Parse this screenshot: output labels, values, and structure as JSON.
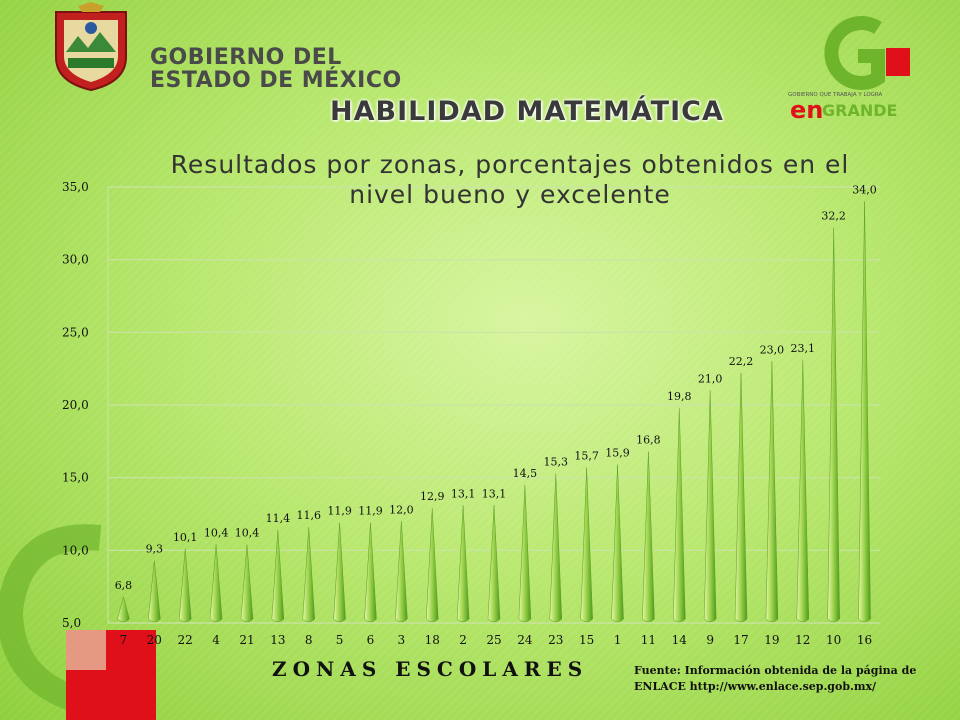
{
  "header": {
    "gov_line1": "GOBIERNO DEL",
    "gov_line2": "ESTADO DE MÉXICO",
    "right_logo_small": "GOBIERNO QUE TRABAJA Y LOGRA",
    "right_logo_en": "en",
    "right_logo_grande": "GRANDE"
  },
  "slide_title": "HABILIDAD MATEMÁTICA",
  "source_note": "Fuente: Información obtenida de la página de ENLACE http://www.enlace.sep.gob.mx/",
  "colors": {
    "accent_red": "#e0101a",
    "accent_green": "#6fb52c",
    "bar_light": "#e6f7a6",
    "bar_dark": "#4f9a1f"
  },
  "chart_data": {
    "type": "bar",
    "title": "Resultados por zonas, porcentajes obtenidos en el nivel bueno y excelente",
    "xlabel": "ZONAS ESCOLARES",
    "ylabel": "",
    "ylim": [
      5.0,
      35.0
    ],
    "yticks": [
      "5,0",
      "10,0",
      "15,0",
      "20,0",
      "25,0",
      "30,0",
      "35,0"
    ],
    "grid": true,
    "categories": [
      "7",
      "20",
      "22",
      "4",
      "21",
      "13",
      "8",
      "5",
      "6",
      "3",
      "18",
      "2",
      "25",
      "24",
      "23",
      "15",
      "1",
      "11",
      "14",
      "9",
      "17",
      "19",
      "12",
      "10",
      "16"
    ],
    "values": [
      6.8,
      9.3,
      10.1,
      10.4,
      10.4,
      11.4,
      11.6,
      11.9,
      11.9,
      12.0,
      12.9,
      13.1,
      13.1,
      14.5,
      15.3,
      15.7,
      15.9,
      16.8,
      19.8,
      21.0,
      22.2,
      23.0,
      23.1,
      32.2,
      34.0
    ],
    "data_labels": [
      "6,8",
      "9,3",
      "10,1",
      "10,4",
      "10,4",
      "11,4",
      "11,6",
      "11,9",
      "11,9",
      "12,0",
      "12,9",
      "13,1",
      "13,1",
      "14,5",
      "15,3",
      "15,7",
      "15,9",
      "16,8",
      "19,8",
      "21,0",
      "22,2",
      "23,0",
      "23,1",
      "32,2",
      "34,0"
    ]
  }
}
